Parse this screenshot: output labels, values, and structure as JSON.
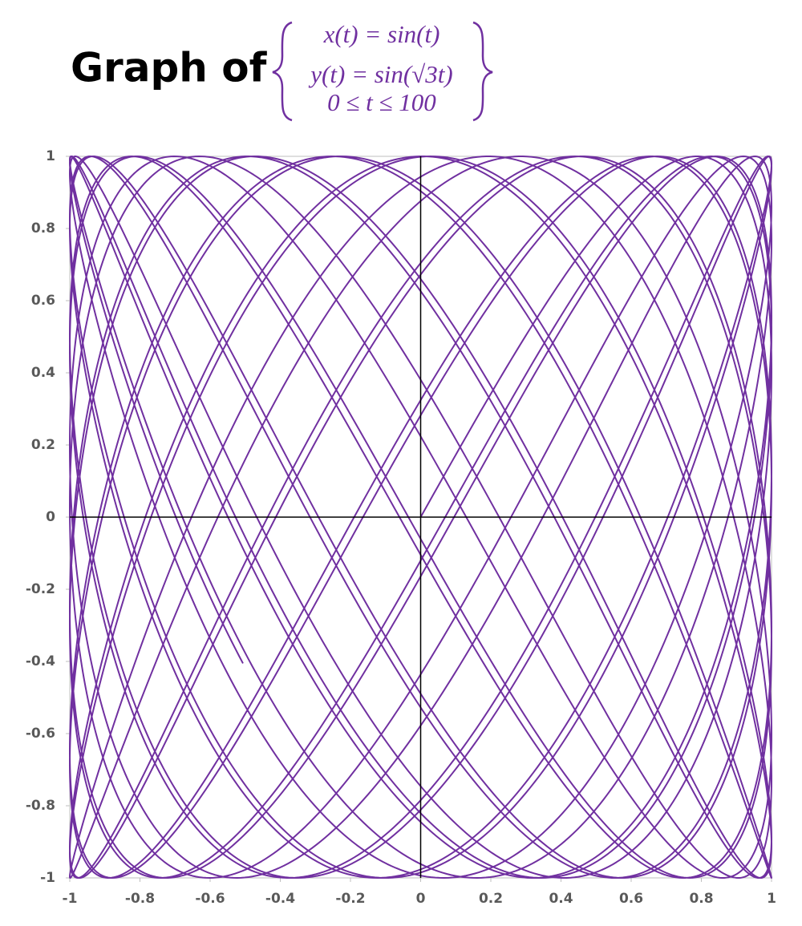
{
  "chart_data": {
    "type": "parametric",
    "title": "Graph of",
    "equations": [
      "x(t) = sin(t)",
      "y(t) = sin(√3t)",
      "0 ≤ t ≤ 100"
    ],
    "t_range": [
      0,
      100
    ],
    "y_frequency": 1.7320508075688772,
    "color": "#7030a0",
    "xlim": [
      -1,
      1
    ],
    "ylim": [
      -1,
      1
    ],
    "xticks": [
      -1,
      -0.8,
      -0.6,
      -0.4,
      -0.2,
      0,
      0.2,
      0.4,
      0.6,
      0.8,
      1
    ],
    "yticks": [
      -1,
      -0.8,
      -0.6,
      -0.4,
      -0.2,
      0,
      0.2,
      0.4,
      0.6,
      0.8,
      1
    ]
  }
}
